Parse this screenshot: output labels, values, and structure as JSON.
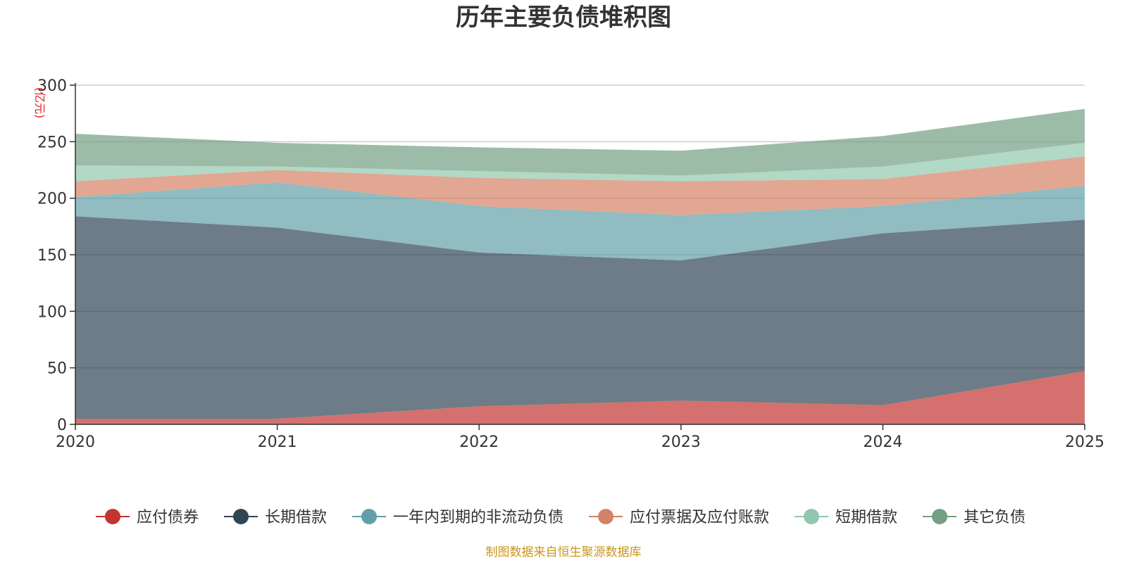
{
  "chart_data": {
    "type": "area",
    "stacked": true,
    "title": "历年主要负债堆积图",
    "unit_label": "(亿元)",
    "categories": [
      "2020",
      "2021",
      "2022",
      "2023",
      "2024",
      "2025"
    ],
    "ylim": [
      0,
      300
    ],
    "yticks": [
      0,
      50,
      100,
      150,
      200,
      250,
      300
    ],
    "grid": true,
    "legend_position": "bottom",
    "series": [
      {
        "name": "应付债券",
        "color": "#c23531",
        "values": [
          5,
          5,
          16,
          21,
          17,
          47
        ]
      },
      {
        "name": "长期借款",
        "color": "#2f4554",
        "values": [
          179,
          169,
          136,
          124,
          152,
          134
        ]
      },
      {
        "name": "一年内到期的非流动负债",
        "color": "#61a0a8",
        "values": [
          17,
          40,
          41,
          40,
          24,
          30
        ]
      },
      {
        "name": "应付票据及应付账款",
        "color": "#d48265",
        "values": [
          14,
          11,
          25,
          30,
          24,
          26
        ]
      },
      {
        "name": "短期借款",
        "color": "#91c7ae",
        "values": [
          14,
          3,
          6,
          5,
          11,
          12
        ]
      },
      {
        "name": "其它负债",
        "color": "#749f83",
        "values": [
          28,
          21,
          21,
          22,
          27,
          30
        ]
      }
    ],
    "source": "制图数据来自恒生聚源数据库"
  }
}
